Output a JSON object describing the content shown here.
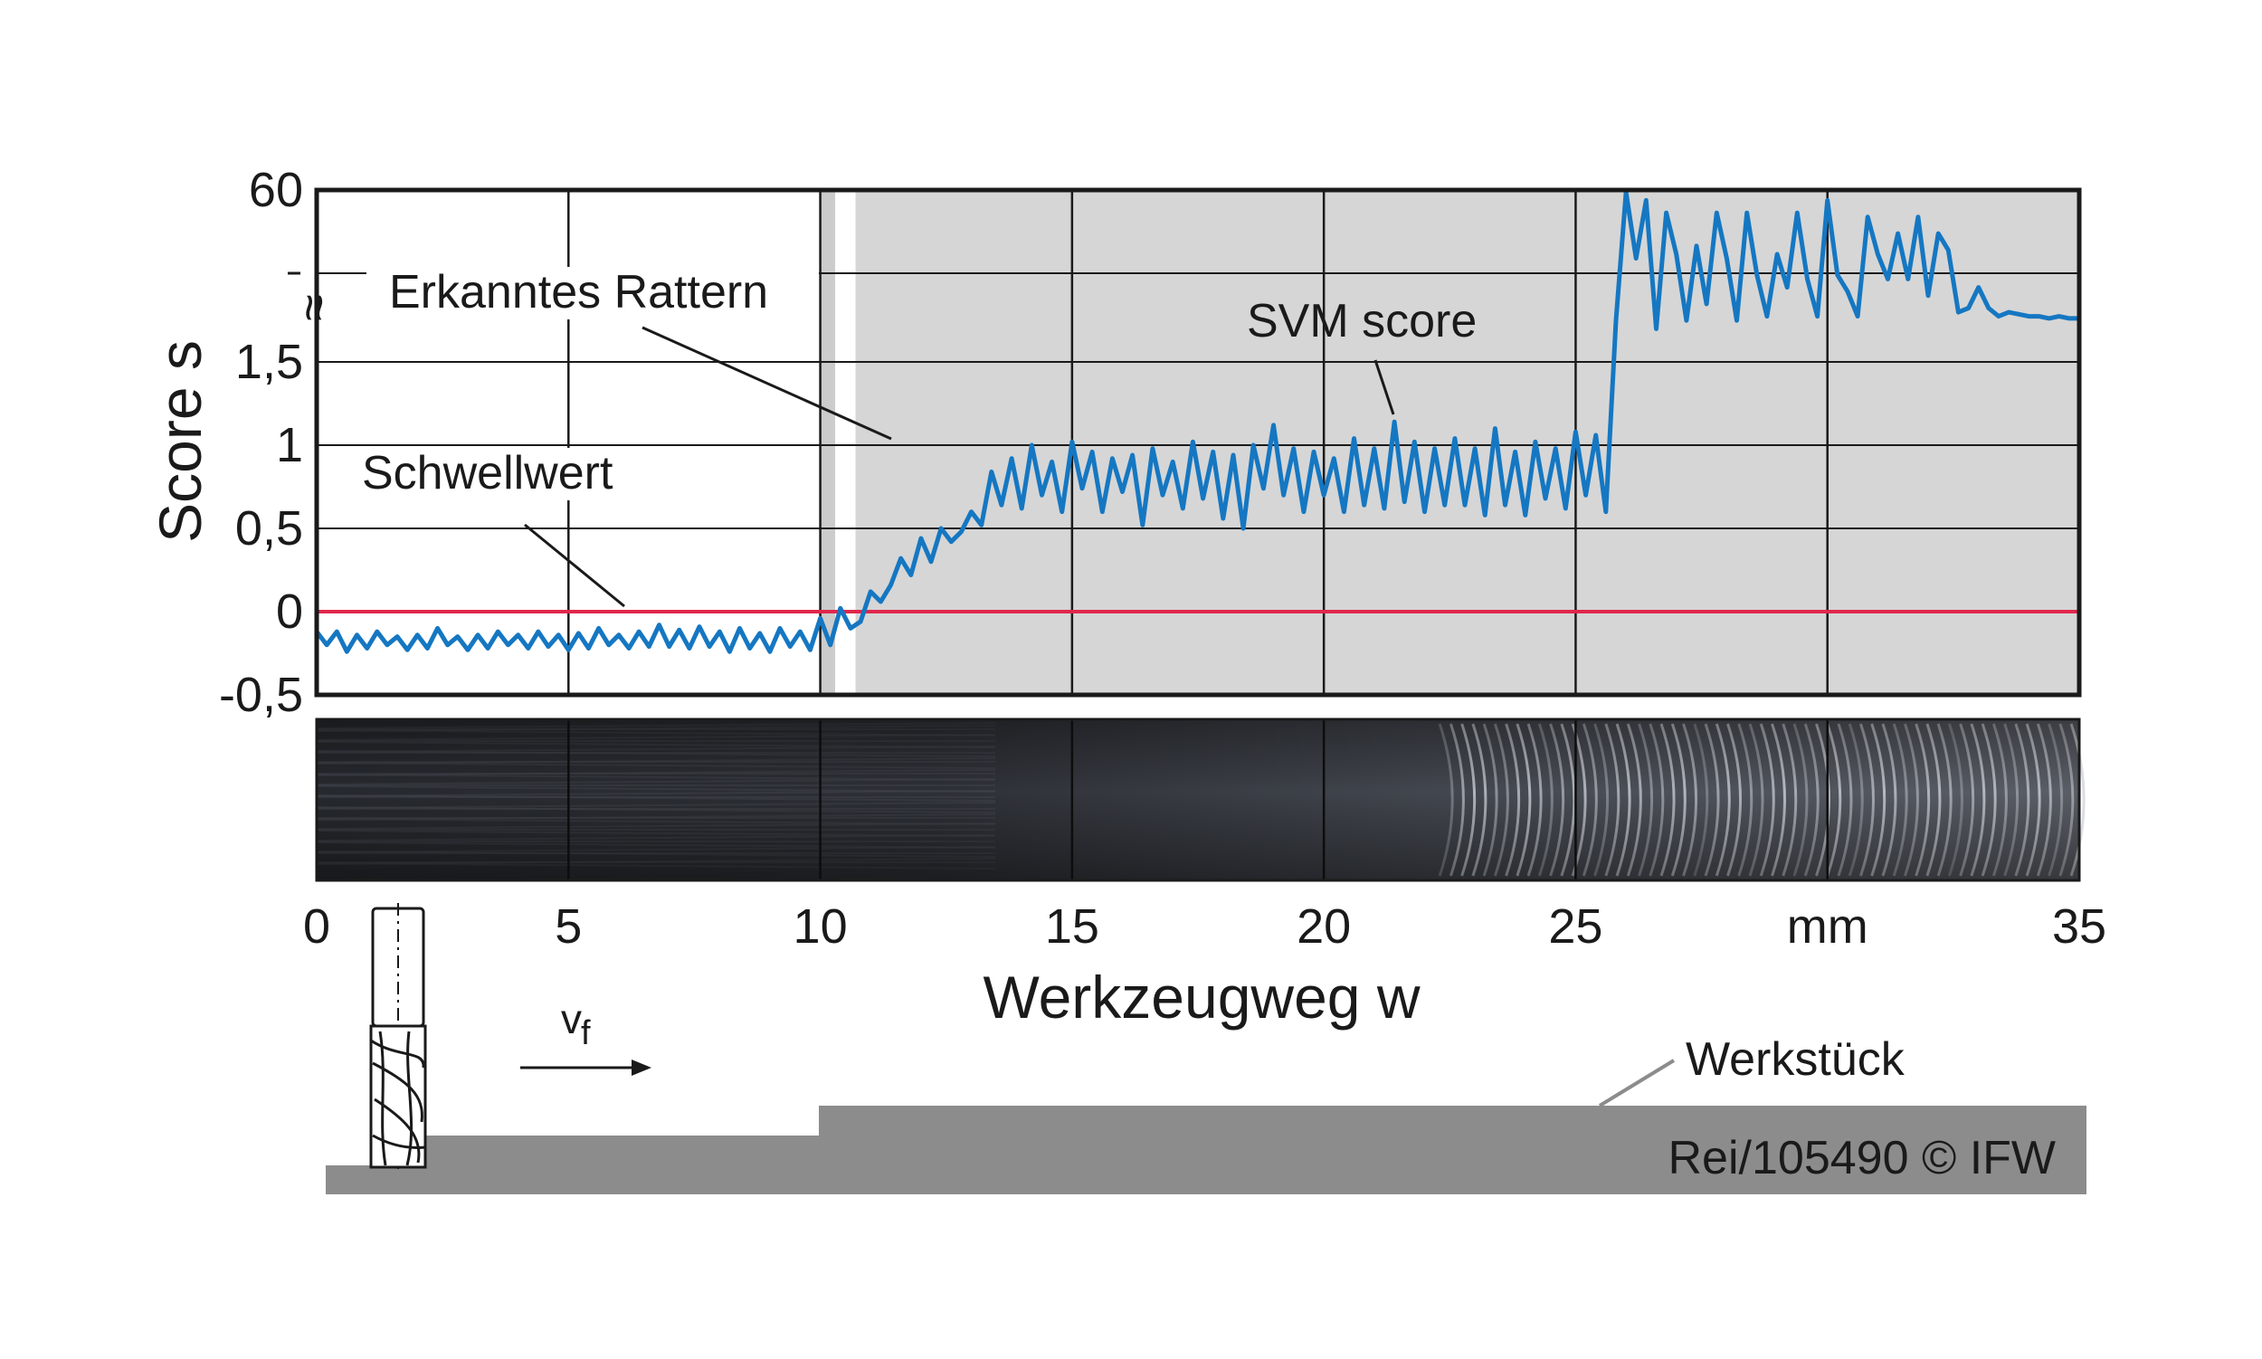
{
  "figure": {
    "credit": "Rei/105490 © IFW",
    "workpiece_label": "Werkstück",
    "feed_label": "v",
    "feed_subscript": "f",
    "photo_strip": "machined surface photograph with chatter marks"
  },
  "chart_data": {
    "type": "line",
    "title": "",
    "xlabel": "Werkzeugweg w",
    "ylabel": "Score s",
    "x_unit_label": "mm",
    "xlim": [
      0,
      35
    ],
    "x_ticks": [
      {
        "value": 0,
        "label": "0"
      },
      {
        "value": 5,
        "label": "5"
      },
      {
        "value": 10,
        "label": "10"
      },
      {
        "value": 15,
        "label": "15"
      },
      {
        "value": 20,
        "label": "20"
      },
      {
        "value": 25,
        "label": "25"
      },
      {
        "value": 30,
        "label": "mm"
      },
      {
        "value": 35,
        "label": "35"
      }
    ],
    "y_axis_break": true,
    "y_ticks": [
      {
        "value": -0.5,
        "label": "-0,5"
      },
      {
        "value": 0,
        "label": "0"
      },
      {
        "value": 0.5,
        "label": "0,5"
      },
      {
        "value": 1,
        "label": "1"
      },
      {
        "value": 1.5,
        "label": "1,5"
      },
      {
        "value": 60,
        "label": "60"
      }
    ],
    "grid": true,
    "chatter_region": {
      "x_start": 10.7,
      "x_end": 35,
      "label": "Erkanntes Rattern"
    },
    "threshold": {
      "value": 0,
      "label": "Schwellwert",
      "color": "#e0274b"
    },
    "series": [
      {
        "name": "SVM score",
        "color": "#1577c2",
        "points": [
          [
            0.0,
            -0.12
          ],
          [
            0.2,
            -0.2
          ],
          [
            0.4,
            -0.12
          ],
          [
            0.6,
            -0.24
          ],
          [
            0.8,
            -0.14
          ],
          [
            1.0,
            -0.22
          ],
          [
            1.2,
            -0.12
          ],
          [
            1.4,
            -0.2
          ],
          [
            1.6,
            -0.15
          ],
          [
            1.8,
            -0.23
          ],
          [
            2.0,
            -0.14
          ],
          [
            2.2,
            -0.22
          ],
          [
            2.4,
            -0.1
          ],
          [
            2.6,
            -0.2
          ],
          [
            2.8,
            -0.15
          ],
          [
            3.0,
            -0.23
          ],
          [
            3.2,
            -0.14
          ],
          [
            3.4,
            -0.22
          ],
          [
            3.6,
            -0.12
          ],
          [
            3.8,
            -0.2
          ],
          [
            4.0,
            -0.14
          ],
          [
            4.2,
            -0.22
          ],
          [
            4.4,
            -0.12
          ],
          [
            4.6,
            -0.21
          ],
          [
            4.8,
            -0.14
          ],
          [
            5.0,
            -0.23
          ],
          [
            5.2,
            -0.13
          ],
          [
            5.4,
            -0.22
          ],
          [
            5.6,
            -0.1
          ],
          [
            5.8,
            -0.2
          ],
          [
            6.0,
            -0.14
          ],
          [
            6.2,
            -0.22
          ],
          [
            6.4,
            -0.12
          ],
          [
            6.6,
            -0.21
          ],
          [
            6.8,
            -0.08
          ],
          [
            7.0,
            -0.21
          ],
          [
            7.2,
            -0.11
          ],
          [
            7.4,
            -0.22
          ],
          [
            7.6,
            -0.09
          ],
          [
            7.8,
            -0.21
          ],
          [
            8.0,
            -0.12
          ],
          [
            8.2,
            -0.24
          ],
          [
            8.4,
            -0.1
          ],
          [
            8.6,
            -0.22
          ],
          [
            8.8,
            -0.13
          ],
          [
            9.0,
            -0.24
          ],
          [
            9.2,
            -0.1
          ],
          [
            9.4,
            -0.21
          ],
          [
            9.6,
            -0.12
          ],
          [
            9.8,
            -0.23
          ],
          [
            10.0,
            -0.04
          ],
          [
            10.2,
            -0.2
          ],
          [
            10.4,
            0.02
          ],
          [
            10.6,
            -0.1
          ],
          [
            10.8,
            -0.06
          ],
          [
            11.0,
            0.12
          ],
          [
            11.2,
            0.06
          ],
          [
            11.4,
            0.16
          ],
          [
            11.6,
            0.32
          ],
          [
            11.8,
            0.22
          ],
          [
            12.0,
            0.44
          ],
          [
            12.2,
            0.3
          ],
          [
            12.4,
            0.5
          ],
          [
            12.6,
            0.42
          ],
          [
            12.8,
            0.48
          ],
          [
            13.0,
            0.6
          ],
          [
            13.2,
            0.52
          ],
          [
            13.4,
            0.84
          ],
          [
            13.6,
            0.64
          ],
          [
            13.8,
            0.92
          ],
          [
            14.0,
            0.62
          ],
          [
            14.2,
            1.0
          ],
          [
            14.4,
            0.7
          ],
          [
            14.6,
            0.9
          ],
          [
            14.8,
            0.6
          ],
          [
            15.0,
            1.02
          ],
          [
            15.2,
            0.74
          ],
          [
            15.4,
            0.96
          ],
          [
            15.6,
            0.6
          ],
          [
            15.8,
            0.92
          ],
          [
            16.0,
            0.72
          ],
          [
            16.2,
            0.94
          ],
          [
            16.4,
            0.52
          ],
          [
            16.6,
            0.98
          ],
          [
            16.8,
            0.7
          ],
          [
            17.0,
            0.9
          ],
          [
            17.2,
            0.62
          ],
          [
            17.4,
            1.02
          ],
          [
            17.6,
            0.68
          ],
          [
            17.8,
            0.96
          ],
          [
            18.0,
            0.56
          ],
          [
            18.2,
            0.94
          ],
          [
            18.4,
            0.5
          ],
          [
            18.6,
            1.0
          ],
          [
            18.8,
            0.74
          ],
          [
            19.0,
            1.12
          ],
          [
            19.2,
            0.7
          ],
          [
            19.4,
            0.98
          ],
          [
            19.6,
            0.6
          ],
          [
            19.8,
            0.96
          ],
          [
            20.0,
            0.7
          ],
          [
            20.2,
            0.92
          ],
          [
            20.4,
            0.6
          ],
          [
            20.6,
            1.04
          ],
          [
            20.8,
            0.64
          ],
          [
            21.0,
            0.98
          ],
          [
            21.2,
            0.62
          ],
          [
            21.4,
            1.14
          ],
          [
            21.6,
            0.66
          ],
          [
            21.8,
            1.02
          ],
          [
            22.0,
            0.6
          ],
          [
            22.2,
            0.98
          ],
          [
            22.4,
            0.64
          ],
          [
            22.6,
            1.04
          ],
          [
            22.8,
            0.64
          ],
          [
            23.0,
            0.98
          ],
          [
            23.2,
            0.58
          ],
          [
            23.4,
            1.1
          ],
          [
            23.6,
            0.64
          ],
          [
            23.8,
            0.96
          ],
          [
            24.0,
            0.58
          ],
          [
            24.2,
            1.02
          ],
          [
            24.4,
            0.68
          ],
          [
            24.6,
            0.98
          ],
          [
            24.8,
            0.62
          ],
          [
            25.0,
            1.08
          ],
          [
            25.2,
            0.7
          ],
          [
            25.4,
            1.06
          ],
          [
            25.6,
            0.6
          ],
          [
            25.8,
            1.7
          ],
          [
            26.0,
            2.32
          ],
          [
            26.2,
            2.0
          ],
          [
            26.4,
            2.28
          ],
          [
            26.6,
            1.66
          ],
          [
            26.8,
            2.22
          ],
          [
            27.0,
            2.02
          ],
          [
            27.2,
            1.7
          ],
          [
            27.4,
            2.06
          ],
          [
            27.6,
            1.78
          ],
          [
            27.8,
            2.22
          ],
          [
            28.0,
            2.0
          ],
          [
            28.2,
            1.7
          ],
          [
            28.4,
            2.22
          ],
          [
            28.6,
            1.92
          ],
          [
            28.8,
            1.72
          ],
          [
            29.0,
            2.02
          ],
          [
            29.2,
            1.86
          ],
          [
            29.4,
            2.22
          ],
          [
            29.6,
            1.9
          ],
          [
            29.8,
            1.72
          ],
          [
            30.0,
            2.28
          ],
          [
            30.2,
            1.92
          ],
          [
            30.4,
            1.84
          ],
          [
            30.6,
            1.72
          ],
          [
            30.8,
            2.2
          ],
          [
            31.0,
            2.02
          ],
          [
            31.2,
            1.9
          ],
          [
            31.4,
            2.12
          ],
          [
            31.6,
            1.9
          ],
          [
            31.8,
            2.2
          ],
          [
            32.0,
            1.82
          ],
          [
            32.2,
            2.12
          ],
          [
            32.4,
            2.04
          ],
          [
            32.6,
            1.74
          ],
          [
            32.8,
            1.76
          ],
          [
            33.0,
            1.86
          ],
          [
            33.2,
            1.76
          ],
          [
            33.4,
            1.72
          ],
          [
            33.6,
            1.74
          ],
          [
            33.8,
            1.73
          ],
          [
            34.0,
            1.72
          ],
          [
            34.2,
            1.72
          ],
          [
            34.4,
            1.71
          ],
          [
            34.6,
            1.72
          ],
          [
            34.8,
            1.71
          ],
          [
            35.0,
            1.71
          ]
        ]
      }
    ]
  }
}
